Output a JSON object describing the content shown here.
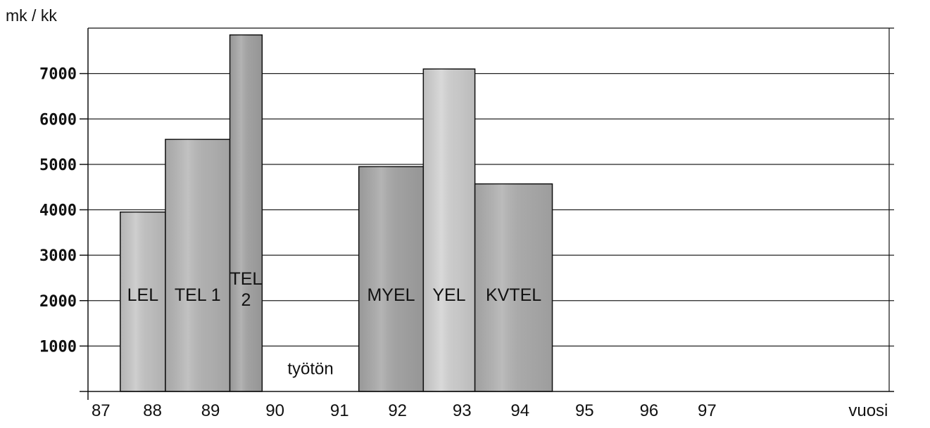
{
  "chart_data": {
    "type": "bar",
    "ylabel": "mk / kk",
    "xlabel": "vuosi",
    "ylim": [
      0,
      8000
    ],
    "yticks": [
      "1000",
      "2000",
      "3000",
      "4000",
      "5000",
      "6000",
      "7000"
    ],
    "ytick_values": [
      1000,
      2000,
      3000,
      4000,
      5000,
      6000,
      7000
    ],
    "grid": true,
    "xtick_labels": [
      {
        "label": "87",
        "x": 87.2
      },
      {
        "label": "88",
        "x": 88.0
      },
      {
        "label": "89",
        "x": 88.9
      },
      {
        "label": "90",
        "x": 89.9
      },
      {
        "label": "91",
        "x": 90.9
      },
      {
        "label": "92",
        "x": 91.8
      },
      {
        "label": "93",
        "x": 92.8
      },
      {
        "label": "94",
        "x": 93.7
      },
      {
        "label": "95",
        "x": 94.7
      },
      {
        "label": "96",
        "x": 95.7
      },
      {
        "label": "97",
        "x": 96.6
      },
      {
        "label": "vuosi",
        "x": 99.1
      }
    ],
    "bars": [
      {
        "label": "LEL",
        "x_start": 87.5,
        "x_end": 88.2,
        "value": 3950,
        "color": "#c8c8c8"
      },
      {
        "label": "TEL 1",
        "x_start": 88.2,
        "x_end": 89.2,
        "value": 5550,
        "color": "#b9b9b9"
      },
      {
        "label": "TEL 2",
        "x_start": 89.2,
        "x_end": 89.7,
        "value": 7850,
        "color": "#a9a9a9"
      },
      {
        "label": "MYEL",
        "x_start": 91.2,
        "x_end": 92.2,
        "value": 4950,
        "color": "#aaaaaa"
      },
      {
        "label": "YEL",
        "x_start": 92.2,
        "x_end": 93.0,
        "value": 7100,
        "color": "#d4d4d4"
      },
      {
        "label": "KVTEL",
        "x_start": 93.0,
        "x_end": 94.2,
        "value": 4570,
        "color": "#b2b2b2"
      }
    ],
    "annotations": [
      {
        "text": "työtön",
        "x": 90.45,
        "y": 500
      }
    ]
  }
}
